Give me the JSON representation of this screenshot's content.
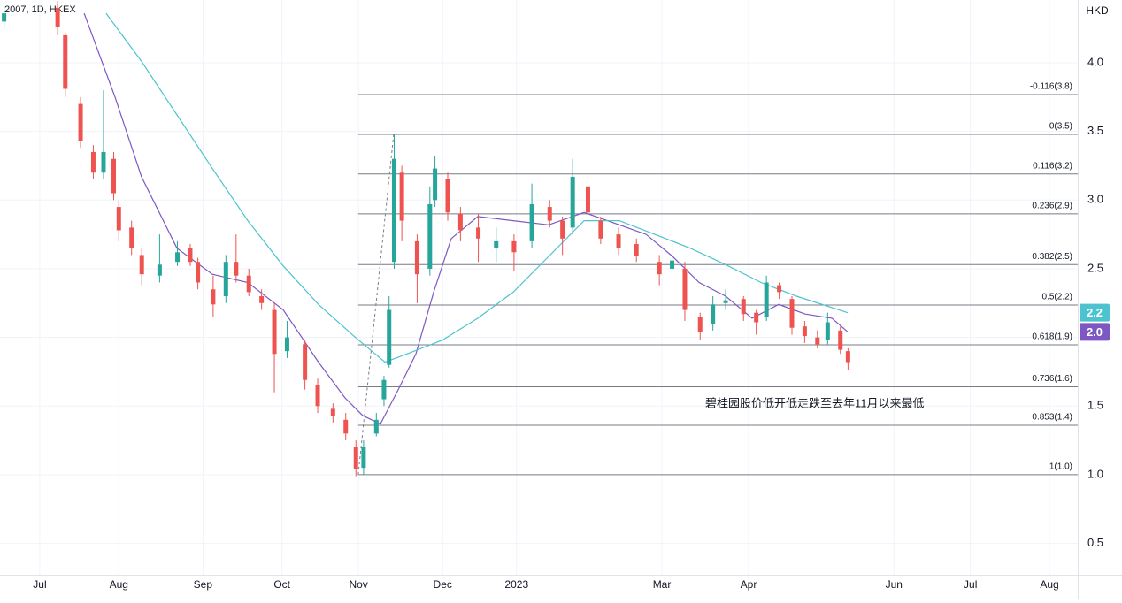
{
  "chart_data": {
    "type": "candlestick",
    "title": "2007, 1D, HKEX",
    "y_unit": "HKD",
    "grid": true,
    "up_color": "#26a69a",
    "down_color": "#ef5350",
    "xlim": [
      -15.6,
      407.1
    ],
    "xticks": [
      {
        "value": 0,
        "label": "Jul"
      },
      {
        "value": 31,
        "label": "Aug"
      },
      {
        "value": 64,
        "label": "Sep"
      },
      {
        "value": 95,
        "label": "Oct"
      },
      {
        "value": 125,
        "label": "Nov"
      },
      {
        "value": 158,
        "label": "Dec"
      },
      {
        "value": 187,
        "label": "2023"
      },
      {
        "value": 244,
        "label": "Mar"
      },
      {
        "value": 278,
        "label": "Apr"
      },
      {
        "value": 335,
        "label": "Jun"
      },
      {
        "value": 365,
        "label": "Jul"
      },
      {
        "value": 396,
        "label": "Aug"
      }
    ],
    "ylim": [
      0.272,
      4.457
    ],
    "yticks": [
      0.5,
      {
        "value": 1,
        "label": "1.0"
      },
      1.5,
      {
        "value": 2,
        "label": "2.0"
      },
      2.5,
      {
        "value": 3,
        "label": "3.0"
      },
      3.5,
      {
        "value": 4,
        "label": "4.0"
      }
    ],
    "x": [
      -14,
      7,
      10,
      16,
      21,
      25,
      29,
      31,
      36,
      40,
      47,
      54,
      59,
      62,
      68,
      73,
      77,
      82,
      87,
      92,
      97,
      104,
      109,
      115,
      120,
      124,
      127,
      132,
      135,
      137,
      139,
      142,
      148,
      153,
      155,
      160,
      165,
      172,
      179,
      186,
      193,
      200,
      205,
      209,
      215,
      220,
      227,
      234,
      243,
      248,
      253,
      259,
      264,
      269,
      276,
      281,
      285,
      290,
      295,
      300,
      305,
      309,
      314,
      317
    ],
    "open": [
      4.3,
      4.4,
      4.2,
      3.7,
      3.35,
      3.2,
      3.3,
      2.95,
      2.8,
      2.6,
      2.45,
      2.55,
      2.65,
      2.55,
      2.35,
      2.3,
      2.55,
      2.45,
      2.3,
      2.2,
      1.9,
      1.95,
      1.65,
      1.48,
      1.4,
      1.2,
      1.05,
      1.3,
      1.55,
      1.8,
      2.55,
      3.2,
      2.7,
      2.5,
      3.0,
      3.15,
      2.9,
      2.8,
      2.65,
      2.7,
      2.7,
      2.95,
      2.85,
      2.8,
      3.1,
      2.85,
      2.75,
      2.68,
      2.55,
      2.5,
      2.5,
      2.15,
      2.1,
      2.25,
      2.28,
      2.18,
      2.15,
      2.38,
      2.28,
      2.08,
      2.0,
      1.98,
      2.05,
      1.9
    ],
    "high": [
      4.4,
      4.45,
      4.22,
      3.75,
      3.4,
      3.8,
      3.35,
      3.0,
      2.85,
      2.65,
      2.75,
      2.7,
      2.68,
      2.58,
      2.45,
      2.6,
      2.75,
      2.5,
      2.35,
      2.25,
      2.12,
      1.98,
      1.7,
      1.52,
      1.45,
      1.25,
      1.25,
      1.45,
      1.72,
      2.3,
      3.48,
      3.25,
      2.75,
      3.1,
      3.32,
      3.2,
      2.95,
      2.9,
      2.8,
      2.75,
      3.12,
      3.0,
      2.88,
      3.3,
      3.15,
      2.88,
      2.8,
      2.72,
      2.6,
      2.68,
      2.55,
      2.18,
      2.3,
      2.35,
      2.3,
      2.2,
      2.45,
      2.4,
      2.3,
      2.12,
      2.05,
      2.18,
      2.08,
      1.92
    ],
    "low": [
      4.25,
      4.2,
      3.75,
      3.38,
      3.15,
      3.15,
      3.0,
      2.7,
      2.6,
      2.38,
      2.4,
      2.52,
      2.52,
      2.35,
      2.15,
      2.25,
      2.4,
      2.3,
      2.2,
      1.6,
      1.85,
      1.62,
      1.45,
      1.38,
      1.25,
      0.99,
      1.0,
      1.28,
      1.5,
      1.78,
      2.5,
      2.7,
      2.25,
      2.45,
      2.95,
      2.85,
      2.7,
      2.55,
      2.55,
      2.48,
      2.65,
      2.8,
      2.6,
      2.75,
      2.85,
      2.68,
      2.6,
      2.55,
      2.38,
      2.48,
      2.12,
      1.98,
      2.05,
      2.2,
      2.12,
      2.02,
      2.12,
      2.28,
      2.02,
      1.96,
      1.92,
      1.95,
      1.88,
      1.76
    ],
    "close": [
      4.36,
      4.26,
      3.81,
      3.43,
      3.2,
      3.35,
      3.05,
      2.78,
      2.65,
      2.46,
      2.53,
      2.62,
      2.55,
      2.4,
      2.24,
      2.55,
      2.45,
      2.33,
      2.25,
      1.88,
      2.0,
      1.69,
      1.5,
      1.43,
      1.3,
      1.04,
      1.2,
      1.4,
      1.69,
      2.2,
      3.3,
      2.85,
      2.46,
      2.97,
      3.23,
      2.91,
      2.78,
      2.72,
      2.7,
      2.62,
      2.97,
      2.85,
      2.72,
      3.17,
      2.91,
      2.72,
      2.65,
      2.59,
      2.46,
      2.56,
      2.2,
      2.04,
      2.24,
      2.27,
      2.17,
      2.11,
      2.4,
      2.33,
      2.07,
      2.01,
      1.95,
      2.11,
      1.91,
      1.82
    ],
    "moving_averages": [
      {
        "color": "#7e57c2",
        "badge": "2.0",
        "x": [
          17.4,
          29.5,
          39.9,
          53.8,
          67.7,
          81.6,
          95.5,
          109.3,
          119.7,
          126.7,
          133.6,
          140.6,
          147.5,
          154.5,
          161.4,
          171.8,
          185.7,
          199.6,
          213.5,
          227.3,
          237.8,
          248.2,
          258.6,
          269.0,
          279.4,
          289.8,
          300.2,
          310.7,
          316.9
        ],
        "values": [
          4.36,
          3.75,
          3.17,
          2.65,
          2.46,
          2.4,
          2.2,
          1.82,
          1.56,
          1.43,
          1.37,
          1.62,
          1.88,
          2.33,
          2.72,
          2.88,
          2.85,
          2.82,
          2.91,
          2.82,
          2.75,
          2.59,
          2.4,
          2.3,
          2.14,
          2.24,
          2.17,
          2.14,
          2.04
        ]
      },
      {
        "color": "#4dc3cf",
        "badge": "2.2",
        "x": [
          26.0,
          39.9,
          53.8,
          67.7,
          81.6,
          95.5,
          109.3,
          123.2,
          135.4,
          144.0,
          157.9,
          171.8,
          185.7,
          199.6,
          213.5,
          227.3,
          241.2,
          255.1,
          269.0,
          282.9,
          296.8,
          316.9
        ],
        "values": [
          4.36,
          4.01,
          3.62,
          3.23,
          2.85,
          2.52,
          2.24,
          2.01,
          1.82,
          1.88,
          1.98,
          2.14,
          2.33,
          2.59,
          2.85,
          2.85,
          2.75,
          2.65,
          2.53,
          2.4,
          2.3,
          2.18
        ]
      }
    ],
    "fib": {
      "x": [
        124.9,
        138.8
      ],
      "levels": [
        {
          "value": 3.768,
          "label": "-0.116(3.8)"
        },
        {
          "value": 3.478,
          "label": "0(3.5)"
        },
        {
          "value": 3.19,
          "label": "0.116(3.2)"
        },
        {
          "value": 2.9,
          "label": "0.236(2.9)"
        },
        {
          "value": 2.53,
          "label": "0.382(2.5)"
        },
        {
          "value": 2.236,
          "label": "0.5(2.2)"
        },
        {
          "value": 1.946,
          "label": "0.618(1.9)"
        },
        {
          "value": 1.64,
          "label": "0.736(1.6)"
        },
        {
          "value": 1.36,
          "label": "0.853(1.4)"
        },
        {
          "value": 1.0,
          "label": "1(1.0)"
        }
      ]
    },
    "annotation": {
      "text": "碧桂园股价低开低走跌至去年11月以来最低",
      "x": 261,
      "y": 1.515
    }
  }
}
